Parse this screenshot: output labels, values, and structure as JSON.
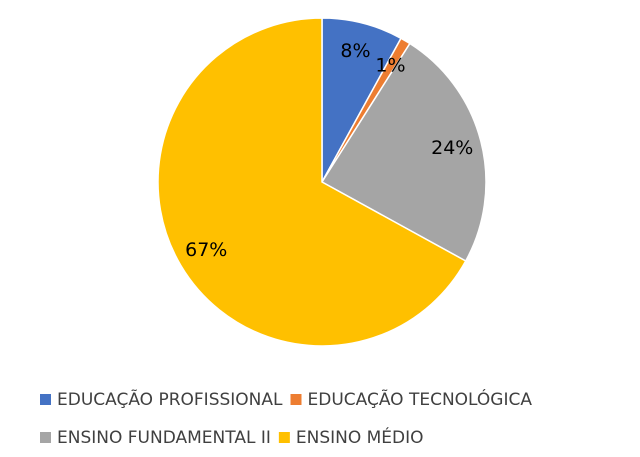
{
  "chart_data": {
    "type": "pie",
    "categories": [
      "EDUCAÇÃO PROFISSIONAL",
      "EDUCAÇÃO TECNOLÓGICA",
      "ENSINO FUNDAMENTAL II",
      "ENSINO MÉDIO"
    ],
    "values": [
      8,
      1,
      24,
      67
    ],
    "value_labels": [
      "8%",
      "1%",
      "24%",
      "67%"
    ],
    "colors": [
      "#4472c4",
      "#ed7d31",
      "#a5a5a5",
      "#ffc000"
    ],
    "legend": "bottom"
  }
}
